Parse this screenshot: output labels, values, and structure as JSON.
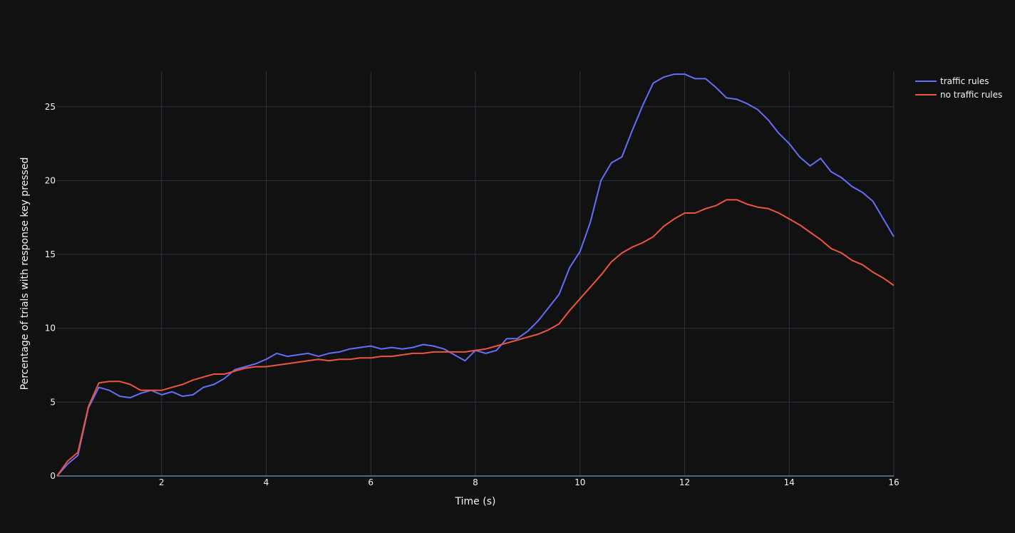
{
  "chart_data": {
    "type": "line",
    "xlabel": "Time (s)",
    "ylabel": "Percentage of trials with response key pressed",
    "xlim": [
      0,
      16
    ],
    "ylim": [
      0,
      27.4
    ],
    "x_ticks": [
      2,
      4,
      6,
      8,
      10,
      12,
      14,
      16
    ],
    "y_ticks": [
      0,
      5,
      10,
      15,
      20,
      25
    ],
    "grid": true,
    "legend_position": "top-right",
    "series": [
      {
        "name": "traffic rules",
        "color": "#636efa",
        "x": [
          0,
          0.2,
          0.4,
          0.6,
          0.8,
          1.0,
          1.2,
          1.4,
          1.6,
          1.8,
          2.0,
          2.2,
          2.4,
          2.6,
          2.8,
          3.0,
          3.2,
          3.4,
          3.6,
          3.8,
          4.0,
          4.2,
          4.4,
          4.6,
          4.8,
          5.0,
          5.2,
          5.4,
          5.6,
          5.8,
          6.0,
          6.2,
          6.4,
          6.6,
          6.8,
          7.0,
          7.2,
          7.4,
          7.6,
          7.8,
          8.0,
          8.2,
          8.4,
          8.6,
          8.8,
          9.0,
          9.2,
          9.4,
          9.6,
          9.8,
          10.0,
          10.2,
          10.4,
          10.6,
          10.8,
          11.0,
          11.2,
          11.4,
          11.6,
          11.8,
          12.0,
          12.2,
          12.4,
          12.6,
          12.8,
          13.0,
          13.2,
          13.4,
          13.6,
          13.8,
          14.0,
          14.2,
          14.4,
          14.6,
          14.8,
          15.0,
          15.2,
          15.4,
          15.6,
          15.8,
          16.0
        ],
        "y": [
          0,
          0.8,
          1.4,
          4.6,
          6.0,
          5.8,
          5.4,
          5.3,
          5.6,
          5.8,
          5.5,
          5.7,
          5.4,
          5.5,
          6.0,
          6.2,
          6.6,
          7.2,
          7.4,
          7.6,
          7.9,
          8.3,
          8.1,
          8.2,
          8.3,
          8.1,
          8.3,
          8.4,
          8.6,
          8.7,
          8.8,
          8.6,
          8.7,
          8.6,
          8.7,
          8.9,
          8.8,
          8.6,
          8.2,
          7.8,
          8.5,
          8.3,
          8.5,
          9.3,
          9.3,
          9.8,
          10.5,
          11.4,
          12.3,
          14.1,
          15.2,
          17.2,
          20.0,
          21.2,
          21.6,
          23.4,
          25.1,
          26.6,
          27.0,
          27.2,
          27.2,
          26.9,
          26.9,
          26.3,
          25.6,
          25.5,
          25.2,
          24.8,
          24.1,
          23.2,
          22.5,
          21.6,
          21.0,
          21.5,
          20.6,
          20.2,
          19.6,
          19.2,
          18.6,
          17.4,
          16.2
        ]
      },
      {
        "name": "no traffic rules",
        "color": "#ef553b",
        "x": [
          0,
          0.2,
          0.4,
          0.6,
          0.8,
          1.0,
          1.2,
          1.4,
          1.6,
          1.8,
          2.0,
          2.2,
          2.4,
          2.6,
          2.8,
          3.0,
          3.2,
          3.4,
          3.6,
          3.8,
          4.0,
          4.2,
          4.4,
          4.6,
          4.8,
          5.0,
          5.2,
          5.4,
          5.6,
          5.8,
          6.0,
          6.2,
          6.4,
          6.6,
          6.8,
          7.0,
          7.2,
          7.4,
          7.6,
          7.8,
          8.0,
          8.2,
          8.4,
          8.6,
          8.8,
          9.0,
          9.2,
          9.4,
          9.6,
          9.8,
          10.0,
          10.2,
          10.4,
          10.6,
          10.8,
          11.0,
          11.2,
          11.4,
          11.6,
          11.8,
          12.0,
          12.2,
          12.4,
          12.6,
          12.8,
          13.0,
          13.2,
          13.4,
          13.6,
          13.8,
          14.0,
          14.2,
          14.4,
          14.6,
          14.8,
          15.0,
          15.2,
          15.4,
          15.6,
          15.8,
          16.0
        ],
        "y": [
          0,
          1.0,
          1.6,
          4.7,
          6.3,
          6.4,
          6.4,
          6.2,
          5.8,
          5.8,
          5.8,
          6.0,
          6.2,
          6.5,
          6.7,
          6.9,
          6.9,
          7.1,
          7.3,
          7.4,
          7.4,
          7.5,
          7.6,
          7.7,
          7.8,
          7.9,
          7.8,
          7.9,
          7.9,
          8.0,
          8.0,
          8.1,
          8.1,
          8.2,
          8.3,
          8.3,
          8.4,
          8.4,
          8.4,
          8.4,
          8.5,
          8.6,
          8.8,
          9.0,
          9.2,
          9.4,
          9.6,
          9.9,
          10.3,
          11.2,
          12.0,
          12.8,
          13.6,
          14.5,
          15.1,
          15.5,
          15.8,
          16.2,
          16.9,
          17.4,
          17.8,
          17.8,
          18.1,
          18.3,
          18.7,
          18.7,
          18.4,
          18.2,
          18.1,
          17.8,
          17.4,
          17.0,
          16.5,
          16.0,
          15.4,
          15.1,
          14.6,
          14.3,
          13.8,
          13.4,
          12.9
        ]
      }
    ]
  }
}
